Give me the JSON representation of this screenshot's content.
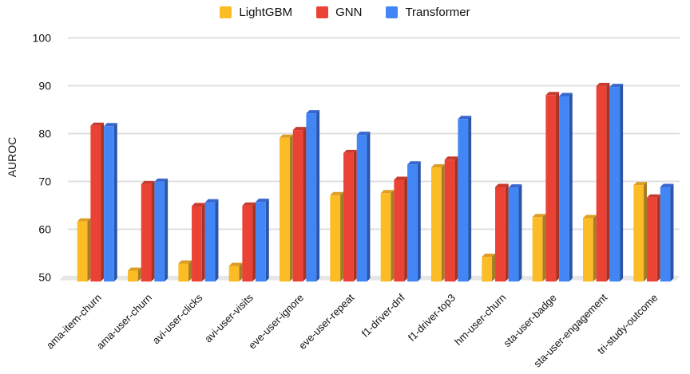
{
  "chart_data": {
    "type": "bar",
    "title": "",
    "ylabel": "AUROC",
    "xlabel": "",
    "ylim": [
      50,
      100
    ],
    "yticks": [
      50,
      60,
      70,
      80,
      90,
      100
    ],
    "grid": true,
    "legend_position": "top-center",
    "categories": [
      "ama-item-churn",
      "ama-user-churn",
      "avi-user-clicks",
      "avi-user-visits",
      "eve-user-ignore",
      "eve-user-repeat",
      "f1-driver-dnf",
      "f1-driver-top3",
      "hm-user-churn",
      "sta-user-badge",
      "sta-user-engagement",
      "tri-study-outcome"
    ],
    "series": [
      {
        "name": "LightGBM",
        "color": {
          "front": "#FBBC25",
          "top": "#DC9E27",
          "side": "#A57D24"
        },
        "values": [
          62.3,
          52.0,
          53.5,
          53.0,
          79.8,
          67.8,
          68.2,
          73.6,
          54.9,
          63.2,
          63.0,
          69.9
        ]
      },
      {
        "name": "GNN",
        "color": {
          "front": "#EA4335",
          "top": "#C83A2E",
          "side": "#A83226"
        },
        "values": [
          82.3,
          70.1,
          65.5,
          65.6,
          81.4,
          76.6,
          71.0,
          75.2,
          69.5,
          88.7,
          90.6,
          67.3
        ]
      },
      {
        "name": "Transformer",
        "color": {
          "front": "#4285F4",
          "top": "#3767CF",
          "side": "#2B55A9"
        },
        "values": [
          82.2,
          70.6,
          66.3,
          66.4,
          84.9,
          80.4,
          74.2,
          83.7,
          69.4,
          88.5,
          90.4,
          69.5
        ]
      }
    ],
    "colors": {
      "gridline": "#DFDFDF",
      "floor": "#E7E7E7",
      "text": "#111111",
      "background": "#FFFFFF"
    }
  }
}
